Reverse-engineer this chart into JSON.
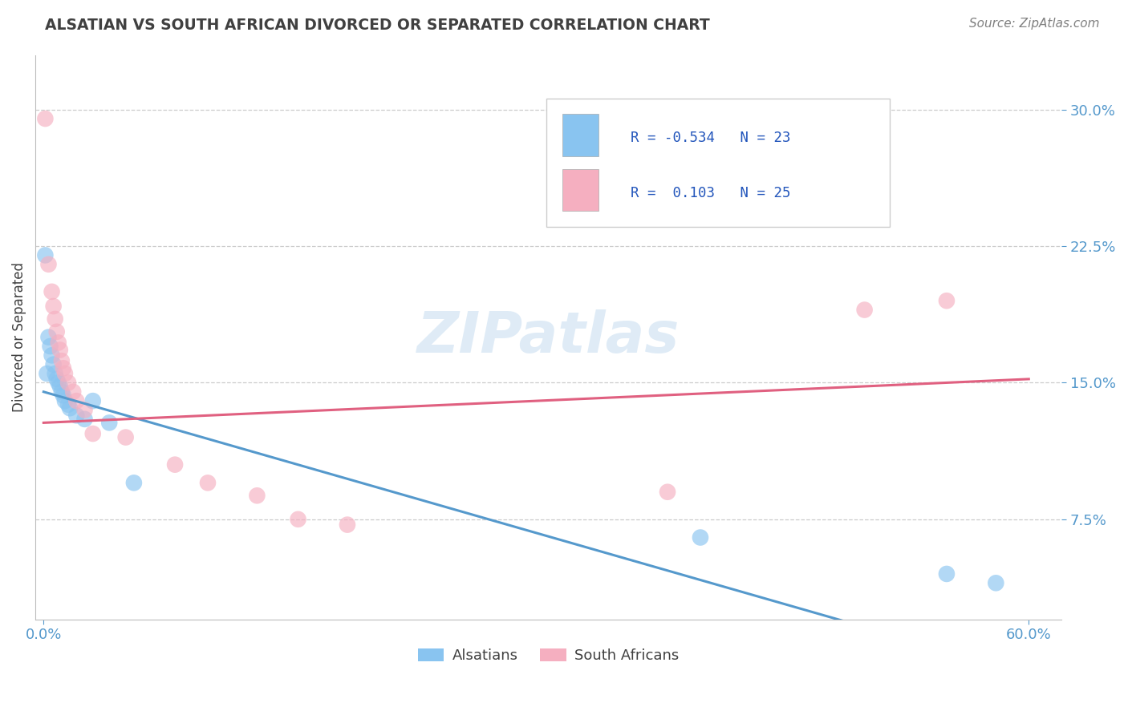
{
  "title": "ALSATIAN VS SOUTH AFRICAN DIVORCED OR SEPARATED CORRELATION CHART",
  "source": "Source: ZipAtlas.com",
  "ylabel": "Divorced or Separated",
  "yticks": [
    0.075,
    0.15,
    0.225,
    0.3
  ],
  "ytick_labels": [
    "7.5%",
    "15.0%",
    "22.5%",
    "30.0%"
  ],
  "xtick_labels": [
    "0.0%",
    "60.0%"
  ],
  "xtick_vals": [
    0.0,
    0.6
  ],
  "legend_r_blue": "-0.534",
  "legend_n_blue": "23",
  "legend_r_pink": "0.103",
  "legend_n_pink": "25",
  "legend_label_blue": "Alsatians",
  "legend_label_pink": "South Africans",
  "blue_color": "#89c4f0",
  "pink_color": "#f5afc0",
  "blue_line_color": "#5599cc",
  "pink_line_color": "#e06080",
  "watermark": "ZIPatlas",
  "blue_scatter": [
    [
      0.001,
      0.22
    ],
    [
      0.002,
      0.155
    ],
    [
      0.003,
      0.175
    ],
    [
      0.004,
      0.17
    ],
    [
      0.005,
      0.165
    ],
    [
      0.006,
      0.16
    ],
    [
      0.007,
      0.155
    ],
    [
      0.008,
      0.152
    ],
    [
      0.009,
      0.15
    ],
    [
      0.01,
      0.148
    ],
    [
      0.011,
      0.145
    ],
    [
      0.012,
      0.143
    ],
    [
      0.013,
      0.14
    ],
    [
      0.015,
      0.138
    ],
    [
      0.016,
      0.136
    ],
    [
      0.02,
      0.132
    ],
    [
      0.025,
      0.13
    ],
    [
      0.03,
      0.14
    ],
    [
      0.04,
      0.128
    ],
    [
      0.055,
      0.095
    ],
    [
      0.4,
      0.065
    ],
    [
      0.55,
      0.045
    ],
    [
      0.58,
      0.04
    ]
  ],
  "pink_scatter": [
    [
      0.001,
      0.295
    ],
    [
      0.003,
      0.215
    ],
    [
      0.005,
      0.2
    ],
    [
      0.006,
      0.192
    ],
    [
      0.007,
      0.185
    ],
    [
      0.008,
      0.178
    ],
    [
      0.009,
      0.172
    ],
    [
      0.01,
      0.168
    ],
    [
      0.011,
      0.162
    ],
    [
      0.012,
      0.158
    ],
    [
      0.013,
      0.155
    ],
    [
      0.015,
      0.15
    ],
    [
      0.018,
      0.145
    ],
    [
      0.02,
      0.14
    ],
    [
      0.025,
      0.135
    ],
    [
      0.03,
      0.122
    ],
    [
      0.05,
      0.12
    ],
    [
      0.08,
      0.105
    ],
    [
      0.1,
      0.095
    ],
    [
      0.13,
      0.088
    ],
    [
      0.155,
      0.075
    ],
    [
      0.185,
      0.072
    ],
    [
      0.38,
      0.09
    ],
    [
      0.5,
      0.19
    ],
    [
      0.55,
      0.195
    ]
  ],
  "blue_line_x": [
    0.0,
    0.6
  ],
  "blue_line_y": [
    0.145,
    -0.01
  ],
  "pink_line_x": [
    0.0,
    0.6
  ],
  "pink_line_y": [
    0.128,
    0.152
  ],
  "xlim": [
    -0.005,
    0.62
  ],
  "ylim": [
    0.02,
    0.33
  ],
  "background_color": "#ffffff",
  "grid_color": "#cccccc",
  "axis_tick_color": "#5599cc",
  "title_color": "#404040",
  "source_color": "#808080",
  "legend_text_color": "#2255bb",
  "ylabel_color": "#404040"
}
